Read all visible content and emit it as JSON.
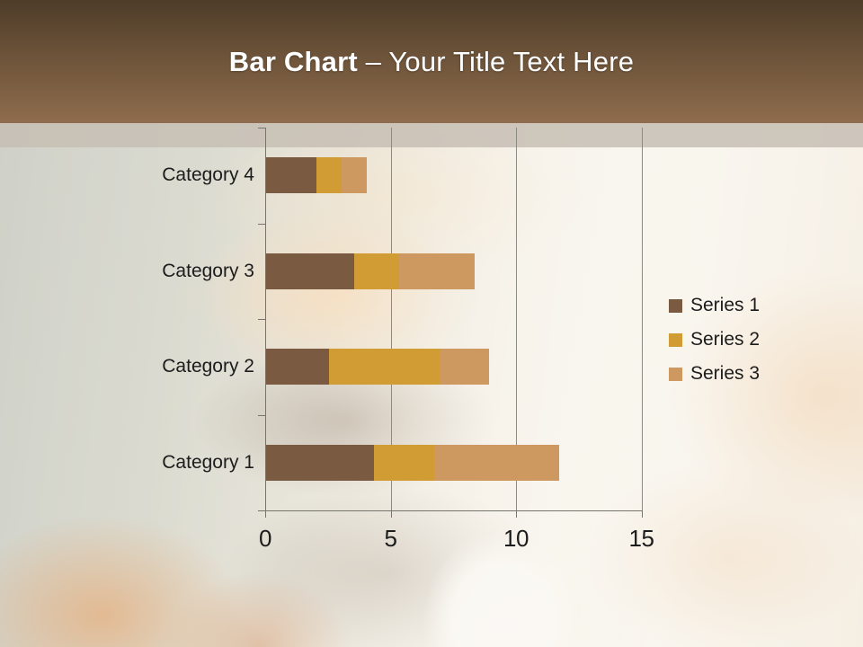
{
  "slide": {
    "title_bold": "Bar Chart",
    "title_rest": " – Your Title Text Here"
  },
  "colors": {
    "header_top": "#4e3c29",
    "header_bottom": "#8f6c4d",
    "title_text": "#ffffff",
    "series1": "#7a5b41",
    "series2": "#d09c33",
    "series3": "#cd9961",
    "gridline": "#8b8b84",
    "axis": "#75756d",
    "label_text": "#1c1c1c"
  },
  "chart_data": {
    "type": "bar",
    "orientation": "horizontal",
    "stacked": true,
    "categories": [
      "Category 1",
      "Category 2",
      "Category 3",
      "Category 4"
    ],
    "series": [
      {
        "name": "Series 1",
        "color": "#7a5b41",
        "values": [
          4.3,
          2.5,
          3.5,
          2
        ]
      },
      {
        "name": "Series 2",
        "color": "#d09c33",
        "values": [
          2.4,
          4.4,
          1.8,
          1
        ]
      },
      {
        "name": "Series 3",
        "color": "#cd9961",
        "values": [
          5,
          2,
          3,
          1
        ]
      }
    ],
    "x_ticks": [
      "0",
      "5",
      "10",
      "15"
    ],
    "xlim": [
      0,
      15
    ],
    "grid": true,
    "legend_position": "right",
    "title": "",
    "xlabel": "",
    "ylabel": ""
  }
}
